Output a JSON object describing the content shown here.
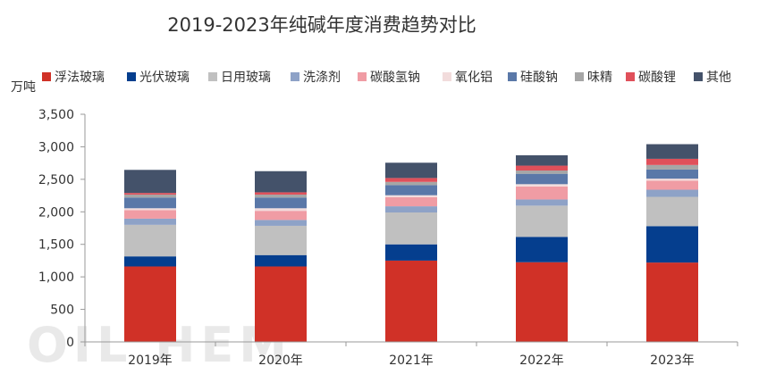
{
  "chart_data": {
    "type": "bar",
    "stacked": true,
    "title": "2019-2023年纯碱年度消费趋势对比",
    "ylabel": "万吨",
    "xlabel": "",
    "ylim": [
      0,
      3500
    ],
    "yticks": [
      0,
      500,
      1000,
      1500,
      2000,
      2500,
      3000,
      3500
    ],
    "ytick_labels": [
      "0",
      "500",
      "1,000",
      "1,500",
      "2,000",
      "2,500",
      "3,000",
      "3,500"
    ],
    "categories": [
      "2019年",
      "2020年",
      "2021年",
      "2022年",
      "2023年"
    ],
    "legend_position": "top",
    "series": [
      {
        "name": "浮法玻璃",
        "color": "#d03127",
        "values": [
          1160,
          1160,
          1250,
          1225,
          1220
        ]
      },
      {
        "name": "光伏玻璃",
        "color": "#053e8e",
        "values": [
          155,
          175,
          250,
          390,
          560
        ]
      },
      {
        "name": "日用玻璃",
        "color": "#c0c0c0",
        "values": [
          485,
          450,
          490,
          480,
          450
        ]
      },
      {
        "name": "洗涤剂",
        "color": "#8ea2c7",
        "values": [
          95,
          90,
          95,
          95,
          110
        ]
      },
      {
        "name": "碳酸氢钠",
        "color": "#f09ca4",
        "values": [
          130,
          140,
          140,
          200,
          140
        ]
      },
      {
        "name": "氧化铝",
        "color": "#f2dcdc",
        "values": [
          30,
          40,
          30,
          35,
          30
        ]
      },
      {
        "name": "硅酸钠",
        "color": "#5a78a8",
        "values": [
          165,
          165,
          155,
          160,
          140
        ]
      },
      {
        "name": "味精",
        "color": "#a6a6a6",
        "values": [
          45,
          45,
          50,
          50,
          70
        ]
      },
      {
        "name": "碳酸锂",
        "color": "#e0505a",
        "values": [
          25,
          35,
          60,
          75,
          95
        ]
      },
      {
        "name": "其他",
        "color": "#44526a",
        "values": [
          355,
          325,
          235,
          160,
          225
        ]
      }
    ]
  }
}
